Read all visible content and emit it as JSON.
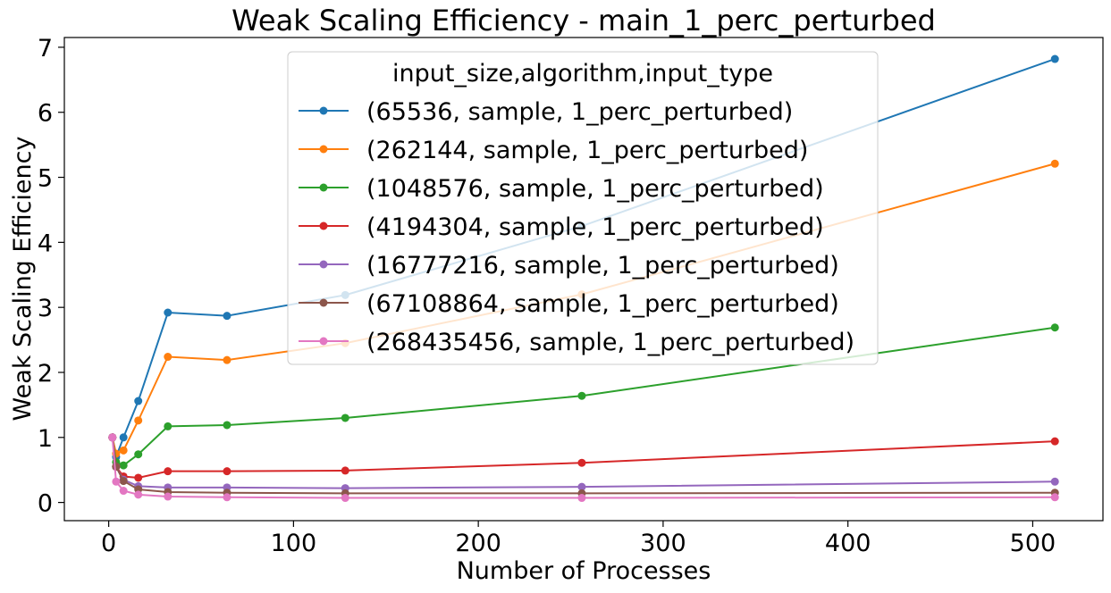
{
  "chart_data": {
    "type": "line",
    "title": "Weak Scaling Efficiency - main_1_perc_perturbed",
    "xlabel": "Number of Processes",
    "ylabel": "Weak Scaling Efficiency",
    "xlim": [
      -24,
      538
    ],
    "ylim": [
      -0.28,
      7.15
    ],
    "xticks": [
      0,
      100,
      200,
      300,
      400,
      500
    ],
    "yticks": [
      0,
      1,
      2,
      3,
      4,
      5,
      6,
      7
    ],
    "grid": false,
    "legend": {
      "title": "input_size,algorithm,input_type",
      "placement": "top-center"
    },
    "x": [
      2,
      4,
      8,
      16,
      32,
      64,
      128,
      256,
      512
    ],
    "series": [
      {
        "name": "(65536, sample, 1_perc_perturbed)",
        "color": "#1f77b4",
        "values": [
          1.0,
          0.7,
          1.0,
          1.56,
          2.92,
          2.87,
          3.19,
          4.25,
          6.82
        ]
      },
      {
        "name": "(262144, sample, 1_perc_perturbed)",
        "color": "#ff7f0e",
        "values": [
          1.0,
          0.75,
          0.8,
          1.26,
          2.24,
          2.19,
          2.45,
          3.2,
          5.21
        ]
      },
      {
        "name": "(1048576, sample, 1_perc_perturbed)",
        "color": "#2ca02c",
        "values": [
          1.0,
          0.62,
          0.57,
          0.74,
          1.17,
          1.19,
          1.3,
          1.64,
          2.69
        ]
      },
      {
        "name": "(4194304, sample, 1_perc_perturbed)",
        "color": "#d62728",
        "values": [
          1.0,
          0.55,
          0.4,
          0.38,
          0.48,
          0.48,
          0.49,
          0.61,
          0.94
        ]
      },
      {
        "name": "(16777216, sample, 1_perc_perturbed)",
        "color": "#9467bd",
        "values": [
          1.0,
          0.55,
          0.35,
          0.25,
          0.23,
          0.23,
          0.22,
          0.24,
          0.32
        ]
      },
      {
        "name": "(67108864, sample, 1_perc_perturbed)",
        "color": "#8c564b",
        "values": [
          1.0,
          0.55,
          0.33,
          0.2,
          0.16,
          0.15,
          0.14,
          0.14,
          0.15
        ]
      },
      {
        "name": "(268435456, sample, 1_perc_perturbed)",
        "color": "#e377c2",
        "values": [
          1.0,
          0.32,
          0.18,
          0.12,
          0.09,
          0.08,
          0.07,
          0.07,
          0.08
        ]
      }
    ]
  }
}
